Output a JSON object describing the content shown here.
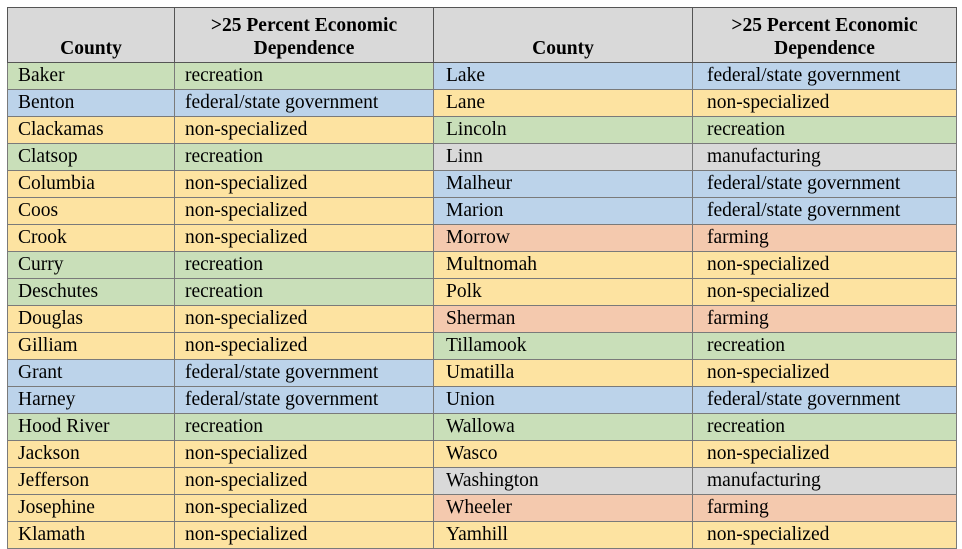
{
  "headers": {
    "county_left": "County",
    "dependence_left": ">25 Percent Economic Dependence",
    "county_right": "County",
    "dependence_right": ">25 Percent Economic Dependence"
  },
  "category_colors": {
    "recreation": "#c9dfb9",
    "federal/state government": "#bcd3ea",
    "non-specialized": "#fde3a1",
    "manufacturing": "#d9d9d9",
    "farming": "#f4c9ae"
  },
  "rows": [
    {
      "county_left": "Baker",
      "dependence_left": "recreation",
      "county_right": "Lake",
      "dependence_right": "federal/state government"
    },
    {
      "county_left": "Benton",
      "dependence_left": "federal/state government",
      "county_right": "Lane",
      "dependence_right": "non-specialized"
    },
    {
      "county_left": "Clackamas",
      "dependence_left": "non-specialized",
      "county_right": "Lincoln",
      "dependence_right": "recreation"
    },
    {
      "county_left": "Clatsop",
      "dependence_left": "recreation",
      "county_right": "Linn",
      "dependence_right": "manufacturing"
    },
    {
      "county_left": "Columbia",
      "dependence_left": "non-specialized",
      "county_right": "Malheur",
      "dependence_right": "federal/state government"
    },
    {
      "county_left": "Coos",
      "dependence_left": "non-specialized",
      "county_right": "Marion",
      "dependence_right": "federal/state government"
    },
    {
      "county_left": "Crook",
      "dependence_left": "non-specialized",
      "county_right": "Morrow",
      "dependence_right": "farming"
    },
    {
      "county_left": "Curry",
      "dependence_left": "recreation",
      "county_right": "Multnomah",
      "dependence_right": "non-specialized"
    },
    {
      "county_left": "Deschutes",
      "dependence_left": "recreation",
      "county_right": "Polk",
      "dependence_right": "non-specialized"
    },
    {
      "county_left": "Douglas",
      "dependence_left": "non-specialized",
      "county_right": "Sherman",
      "dependence_right": "farming"
    },
    {
      "county_left": "Gilliam",
      "dependence_left": "non-specialized",
      "county_right": "Tillamook",
      "dependence_right": "recreation"
    },
    {
      "county_left": "Grant",
      "dependence_left": "federal/state government",
      "county_right": "Umatilla",
      "dependence_right": "non-specialized"
    },
    {
      "county_left": "Harney",
      "dependence_left": "federal/state government",
      "county_right": "Union",
      "dependence_right": "federal/state government"
    },
    {
      "county_left": "Hood River",
      "dependence_left": "recreation",
      "county_right": "Wallowa",
      "dependence_right": "recreation"
    },
    {
      "county_left": "Jackson",
      "dependence_left": "non-specialized",
      "county_right": "Wasco",
      "dependence_right": "non-specialized"
    },
    {
      "county_left": "Jefferson",
      "dependence_left": "non-specialized",
      "county_right": "Washington",
      "dependence_right": "manufacturing"
    },
    {
      "county_left": "Josephine",
      "dependence_left": "non-specialized",
      "county_right": "Wheeler",
      "dependence_right": "farming"
    },
    {
      "county_left": "Klamath",
      "dependence_left": "non-specialized",
      "county_right": "Yamhill",
      "dependence_right": "non-specialized"
    }
  ]
}
